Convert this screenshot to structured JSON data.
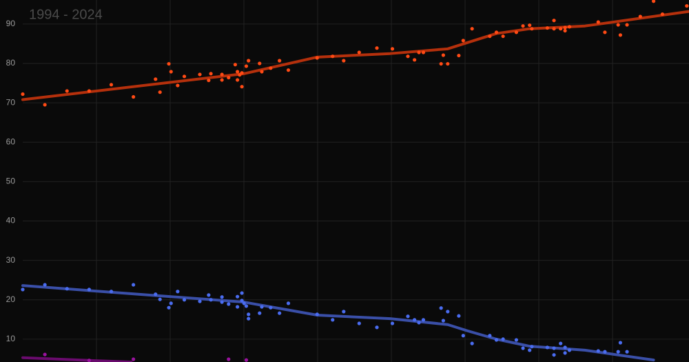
{
  "chart_data": {
    "type": "scatter",
    "subtitle": "1994 - 2024",
    "xlim": [
      1994,
      2024.1
    ],
    "ylim": [
      4.2,
      96.1
    ],
    "yticks": [
      10,
      20,
      30,
      40,
      50,
      60,
      70,
      80,
      90
    ],
    "grid": true,
    "series": [
      {
        "color": "#ff4a14",
        "trend_color": "#b5300c",
        "x": [
          1994.0,
          1995.0,
          1996.0,
          1997.0,
          1998.0,
          1999.0,
          2000.0,
          2000.2,
          2000.6,
          2000.7,
          2001.0,
          2001.3,
          2002.0,
          2002.4,
          2002.5,
          2003.0,
          2003.0,
          2003.3,
          2003.6,
          2003.7,
          2003.7,
          2003.8,
          2003.9,
          2003.9,
          2004.1,
          2004.2,
          2004.7,
          2004.8,
          2005.2,
          2005.6,
          2006.0,
          2007.3,
          2008.0,
          2008.5,
          2009.2,
          2010.0,
          2010.7,
          2011.4,
          2011.7,
          2011.9,
          2012.1,
          2012.9,
          2013.0,
          2013.2,
          2013.7,
          2013.9,
          2014.3,
          2015.1,
          2015.4,
          2015.7,
          2016.3,
          2016.6,
          2016.9,
          2017.0,
          2017.7,
          2018.0,
          2018.0,
          2018.3,
          2018.5,
          2018.5,
          2018.7,
          2020.0,
          2020.3,
          2020.9,
          2021.0,
          2021.3,
          2021.9,
          2022.5,
          2022.9,
          2024.0
        ],
        "values": [
          72.2,
          69.5,
          73.0,
          73.0,
          74.6,
          71.5,
          76.0,
          72.7,
          79.9,
          77.9,
          74.4,
          76.7,
          77.2,
          75.7,
          77.4,
          75.8,
          77.2,
          76.4,
          79.7,
          77.9,
          75.8,
          77.1,
          74.1,
          77.6,
          79.3,
          80.7,
          80.0,
          77.9,
          78.8,
          80.7,
          78.3,
          81.4,
          81.8,
          80.7,
          82.8,
          83.9,
          83.7,
          81.8,
          80.9,
          82.8,
          82.8,
          79.9,
          82.1,
          79.9,
          82.0,
          85.8,
          88.8,
          86.9,
          87.9,
          86.9,
          87.9,
          89.5,
          89.7,
          88.8,
          89.0,
          90.9,
          88.8,
          88.8,
          88.3,
          89.1,
          89.3,
          90.5,
          87.9,
          89.8,
          87.2,
          89.8,
          91.9,
          95.8,
          92.5,
          94.6
        ],
        "trend_x": [
          1994.0,
          2004.0,
          2007.3,
          2010.6,
          2013.2,
          2014.1,
          2015.4,
          2016.9,
          2019.4,
          2024.1
        ],
        "trend_values": [
          70.8,
          77.4,
          81.6,
          82.5,
          83.7,
          85.3,
          87.6,
          88.8,
          89.5,
          93.2
        ]
      },
      {
        "color": "#4a6cf0",
        "trend_color": "#3a4fa8",
        "x": [
          1994.0,
          1995.0,
          1996.0,
          1997.0,
          1998.0,
          1999.0,
          2000.0,
          2000.2,
          2000.6,
          2000.7,
          2001.0,
          2001.3,
          2002.0,
          2002.4,
          2002.5,
          2003.0,
          2003.0,
          2003.3,
          2003.7,
          2003.7,
          2003.9,
          2003.9,
          2004.0,
          2004.1,
          2004.2,
          2004.2,
          2004.7,
          2004.8,
          2005.2,
          2005.6,
          2006.0,
          2007.3,
          2008.0,
          2008.5,
          2009.2,
          2010.0,
          2010.7,
          2011.4,
          2011.7,
          2011.9,
          2012.1,
          2012.9,
          2013.0,
          2013.2,
          2013.7,
          2013.9,
          2014.3,
          2015.1,
          2015.4,
          2015.7,
          2016.3,
          2016.6,
          2016.9,
          2017.0,
          2017.7,
          2018.0,
          2018.0,
          2018.3,
          2018.5,
          2018.5,
          2018.7,
          2020.0,
          2020.3,
          2020.9,
          2021.0,
          2021.3
        ],
        "values": [
          22.6,
          23.8,
          22.8,
          22.6,
          22.1,
          23.8,
          21.4,
          20.1,
          18.0,
          19.1,
          22.1,
          20.0,
          19.6,
          21.2,
          20.0,
          20.7,
          19.4,
          18.9,
          18.2,
          20.8,
          21.7,
          19.8,
          19.1,
          18.4,
          16.3,
          15.2,
          16.6,
          18.2,
          18.0,
          16.6,
          19.1,
          16.3,
          14.9,
          17.0,
          14.0,
          13.0,
          14.0,
          15.8,
          14.9,
          14.2,
          14.9,
          17.9,
          14.7,
          17.0,
          15.9,
          10.9,
          8.9,
          10.9,
          9.8,
          10.0,
          9.8,
          7.7,
          7.2,
          8.1,
          7.9,
          6.0,
          7.7,
          8.9,
          6.5,
          7.9,
          7.2,
          7.0,
          6.8,
          6.8,
          9.1,
          6.8
        ],
        "trend_x": [
          1994.0,
          2004.0,
          2007.3,
          2010.6,
          2013.2,
          2014.1,
          2015.4,
          2016.9,
          2019.4,
          2022.5
        ],
        "trend_values": [
          23.6,
          19.4,
          16.1,
          15.2,
          13.7,
          12.1,
          10.0,
          8.2,
          7.2,
          4.7
        ]
      },
      {
        "color": "#9a129f",
        "trend_color": "#6a0b6e",
        "x": [
          1995.0,
          1997.0,
          1999.0,
          2003.3,
          2004.1
        ],
        "values": [
          6.1,
          4.6,
          4.9,
          4.9,
          4.7
        ],
        "trend_x": [
          1994.0,
          1997.0,
          1998.9
        ],
        "trend_values": [
          5.3,
          4.6,
          4.2
        ]
      }
    ]
  }
}
